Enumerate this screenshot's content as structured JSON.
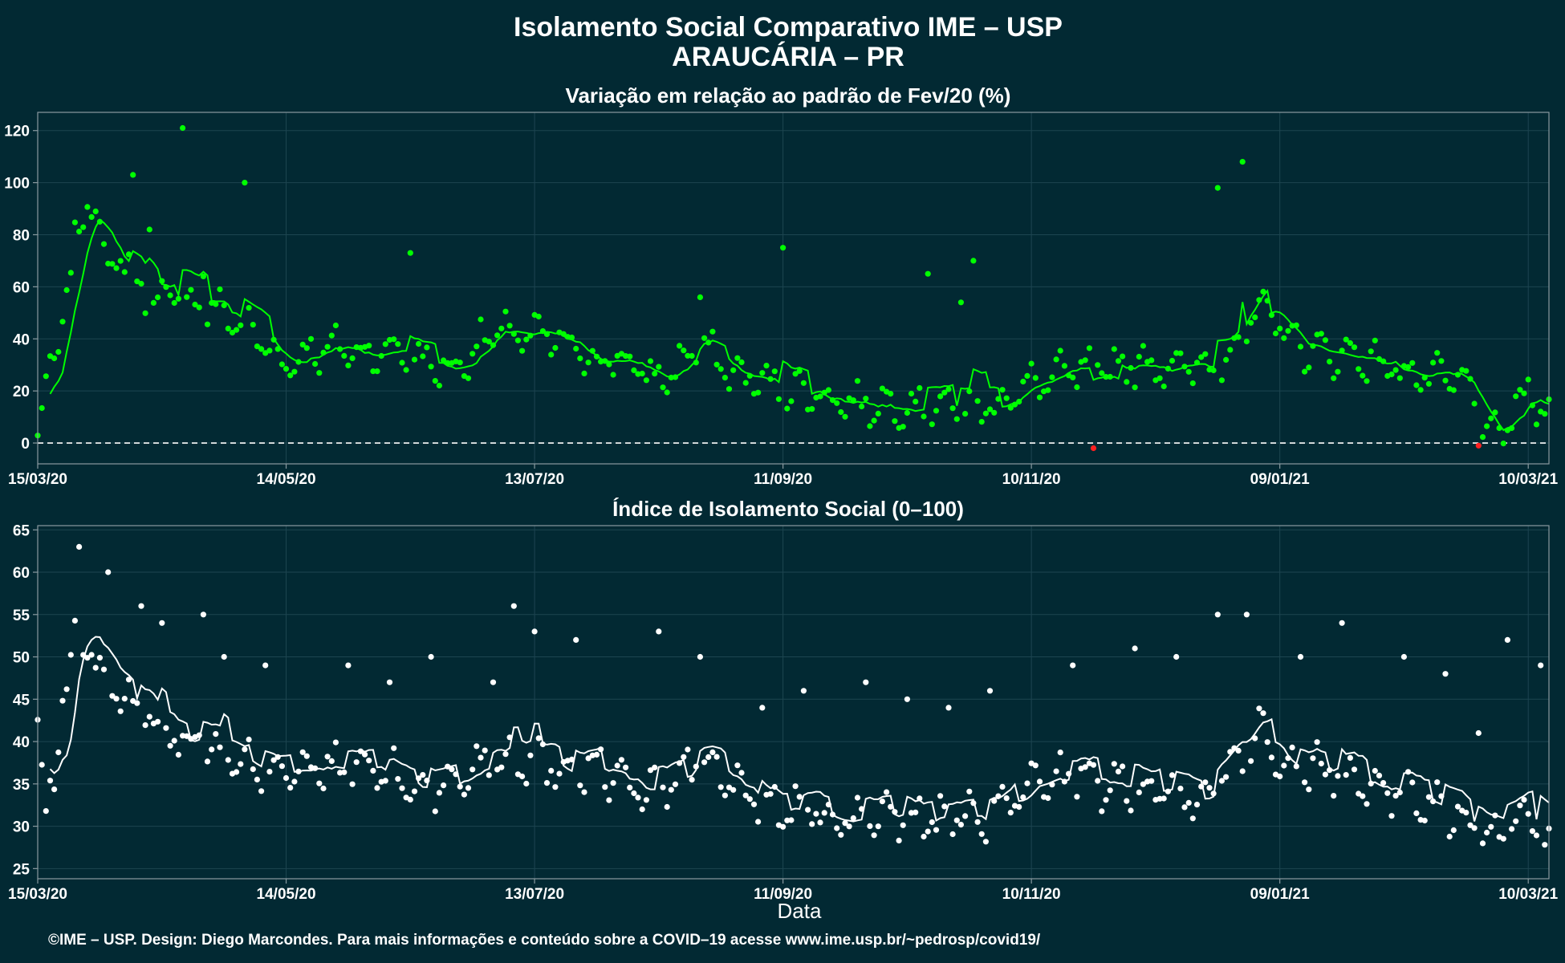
{
  "page": {
    "title_line1": "Isolamento Social Comparativo IME – USP",
    "title_line2": "ARAUCÁRIA – PR",
    "caption": "©IME – USP. Design: Diego Marcondes. Para mais informações e conteúdo sobre a COVID–19 acesse www.ime.usp.br/~pedrosp/covid19/",
    "background_color": "#022933",
    "panel_border_color": "#8a9aa0",
    "grid_color": "#1d4550"
  },
  "chart_data": [
    {
      "type": "scatter",
      "title": "Variação em relação ao padrão de Fev/20 (%)",
      "xlabel": "",
      "ylabel": "",
      "x_start_date": "15/03/20",
      "x_end_date": "15/03/21",
      "ylim": [
        -8,
        127
      ],
      "yticks": [
        0,
        20,
        40,
        60,
        80,
        100,
        120
      ],
      "xtick_labels": [
        "15/03/20",
        "14/05/20",
        "13/07/20",
        "11/09/20",
        "10/11/20",
        "09/01/21",
        "10/03/21"
      ],
      "xtick_days": [
        0,
        60,
        120,
        180,
        240,
        300,
        360
      ],
      "reference_line": {
        "y": 0,
        "style": "dashed",
        "color": "#ffffff"
      },
      "point_color": "#00ff00",
      "negative_point_color": "#ff2020",
      "line_color": "#00ff00",
      "grid": true,
      "series": [
        {
          "kind": "points",
          "keyframes": [
            [
              0,
              2
            ],
            [
              2,
              20
            ],
            [
              5,
              40
            ],
            [
              7,
              55
            ],
            [
              9,
              75
            ],
            [
              11,
              88
            ],
            [
              13,
              95
            ],
            [
              15,
              85
            ],
            [
              17,
              65
            ],
            [
              20,
              72
            ],
            [
              25,
              60
            ],
            [
              30,
              55
            ],
            [
              35,
              57
            ],
            [
              40,
              52
            ],
            [
              45,
              50
            ],
            [
              50,
              45
            ],
            [
              55,
              38
            ],
            [
              60,
              30
            ],
            [
              65,
              35
            ],
            [
              70,
              36
            ],
            [
              75,
              36
            ],
            [
              80,
              34
            ],
            [
              85,
              36
            ],
            [
              90,
              35
            ],
            [
              95,
              30
            ],
            [
              100,
              28
            ],
            [
              105,
              35
            ],
            [
              110,
              42
            ],
            [
              115,
              42
            ],
            [
              120,
              41
            ],
            [
              125,
              40
            ],
            [
              130,
              35
            ],
            [
              135,
              32
            ],
            [
              140,
              33
            ],
            [
              145,
              28
            ],
            [
              150,
              24
            ],
            [
              155,
              30
            ],
            [
              160,
              38
            ],
            [
              165,
              30
            ],
            [
              170,
              25
            ],
            [
              175,
              24
            ],
            [
              180,
              20
            ],
            [
              185,
              20
            ],
            [
              190,
              18
            ],
            [
              195,
              16
            ],
            [
              200,
              15
            ],
            [
              205,
              15
            ],
            [
              210,
              15
            ],
            [
              215,
              14
            ],
            [
              220,
              14
            ],
            [
              225,
              13
            ],
            [
              230,
              15
            ],
            [
              235,
              18
            ],
            [
              240,
              22
            ],
            [
              245,
              25
            ],
            [
              250,
              27
            ],
            [
              255,
              28
            ],
            [
              260,
              30
            ],
            [
              265,
              30
            ],
            [
              270,
              30
            ],
            [
              275,
              30
            ],
            [
              280,
              28
            ],
            [
              285,
              30
            ],
            [
              290,
              40
            ],
            [
              295,
              50
            ],
            [
              300,
              46
            ],
            [
              303,
              40
            ],
            [
              308,
              35
            ],
            [
              315,
              34
            ],
            [
              320,
              33
            ],
            [
              325,
              30
            ],
            [
              330,
              28
            ],
            [
              335,
              25
            ],
            [
              340,
              25
            ],
            [
              345,
              22
            ],
            [
              348,
              15
            ],
            [
              350,
              2
            ],
            [
              353,
              2
            ],
            [
              356,
              12
            ],
            [
              360,
              18
            ],
            [
              363,
              14
            ],
            [
              366,
              18
            ]
          ],
          "outliers": [
            [
              23,
              103
            ],
            [
              27,
              82
            ],
            [
              35,
              121
            ],
            [
              40,
              64
            ],
            [
              50,
              100
            ],
            [
              90,
              73
            ],
            [
              160,
              56
            ],
            [
              215,
              65
            ],
            [
              223,
              54
            ],
            [
              226,
              70
            ],
            [
              285,
              98
            ],
            [
              291,
              108
            ],
            [
              180,
              75
            ],
            [
              255,
              -2
            ],
            [
              348,
              -1
            ]
          ],
          "negative_days": [
            255,
            348
          ]
        },
        {
          "kind": "line",
          "name": ""
        }
      ]
    },
    {
      "type": "scatter",
      "title": "Índice de Isolamento Social (0–100)",
      "xlabel": "Data",
      "ylabel": "",
      "x_start_date": "15/03/20",
      "x_end_date": "15/03/21",
      "ylim": [
        23.8,
        65.5
      ],
      "yticks": [
        25,
        30,
        35,
        40,
        45,
        50,
        55,
        60,
        65
      ],
      "xtick_labels": [
        "15/03/20",
        "14/05/20",
        "13/07/20",
        "11/09/20",
        "10/11/20",
        "09/01/21",
        "10/03/21"
      ],
      "xtick_days": [
        0,
        60,
        120,
        180,
        240,
        300,
        360
      ],
      "point_color": "#ffffff",
      "line_color": "#ffffff",
      "grid": true,
      "series": [
        {
          "kind": "points",
          "keyframes": [
            [
              0,
              42
            ],
            [
              2,
              30
            ],
            [
              4,
              36
            ],
            [
              6,
              45
            ],
            [
              8,
              50
            ],
            [
              10,
              52
            ],
            [
              13,
              51
            ],
            [
              16,
              47
            ],
            [
              20,
              45
            ],
            [
              25,
              44
            ],
            [
              30,
              42
            ],
            [
              35,
              40
            ],
            [
              40,
              40
            ],
            [
              45,
              38
            ],
            [
              50,
              37
            ],
            [
              55,
              37
            ],
            [
              60,
              37
            ],
            [
              65,
              36
            ],
            [
              70,
              37
            ],
            [
              75,
              37
            ],
            [
              80,
              37
            ],
            [
              85,
              36
            ],
            [
              90,
              35
            ],
            [
              95,
              34
            ],
            [
              100,
              35
            ],
            [
              105,
              37
            ],
            [
              110,
              38
            ],
            [
              115,
              38
            ],
            [
              120,
              38
            ],
            [
              125,
              37
            ],
            [
              130,
              37
            ],
            [
              135,
              37
            ],
            [
              140,
              36
            ],
            [
              145,
              34
            ],
            [
              150,
              34
            ],
            [
              155,
              36
            ],
            [
              160,
              38
            ],
            [
              165,
              36
            ],
            [
              170,
              34
            ],
            [
              175,
              33
            ],
            [
              180,
              32
            ],
            [
              185,
              32
            ],
            [
              190,
              31
            ],
            [
              195,
              31
            ],
            [
              200,
              31
            ],
            [
              205,
              31
            ],
            [
              210,
              31
            ],
            [
              215,
              31
            ],
            [
              220,
              31
            ],
            [
              225,
              31
            ],
            [
              230,
              31
            ],
            [
              235,
              33
            ],
            [
              240,
              35
            ],
            [
              245,
              36
            ],
            [
              250,
              36
            ],
            [
              255,
              35
            ],
            [
              260,
              35
            ],
            [
              265,
              35
            ],
            [
              270,
              35
            ],
            [
              275,
              34
            ],
            [
              280,
              34
            ],
            [
              285,
              35
            ],
            [
              290,
              38
            ],
            [
              295,
              42
            ],
            [
              300,
              38
            ],
            [
              305,
              37
            ],
            [
              310,
              37
            ],
            [
              315,
              36
            ],
            [
              320,
              35
            ],
            [
              325,
              35
            ],
            [
              330,
              34
            ],
            [
              335,
              33
            ],
            [
              340,
              32
            ],
            [
              345,
              31
            ],
            [
              350,
              28
            ],
            [
              355,
              30
            ],
            [
              360,
              30
            ],
            [
              365,
              28
            ],
            [
              367,
              30
            ]
          ],
          "outliers": [
            [
              10,
              63
            ],
            [
              17,
              60
            ],
            [
              25,
              56
            ],
            [
              30,
              54
            ],
            [
              40,
              55
            ],
            [
              45,
              50
            ],
            [
              55,
              49
            ],
            [
              75,
              49
            ],
            [
              85,
              47
            ],
            [
              95,
              50
            ],
            [
              110,
              47
            ],
            [
              115,
              56
            ],
            [
              120,
              53
            ],
            [
              130,
              52
            ],
            [
              150,
              53
            ],
            [
              160,
              50
            ],
            [
              175,
              44
            ],
            [
              185,
              46
            ],
            [
              200,
              47
            ],
            [
              210,
              45
            ],
            [
              220,
              44
            ],
            [
              230,
              46
            ],
            [
              250,
              49
            ],
            [
              265,
              51
            ],
            [
              275,
              50
            ],
            [
              285,
              55
            ],
            [
              292,
              55
            ],
            [
              305,
              50
            ],
            [
              315,
              54
            ],
            [
              330,
              50
            ],
            [
              340,
              48
            ],
            [
              348,
              41
            ],
            [
              355,
              52
            ],
            [
              363,
              49
            ]
          ]
        },
        {
          "kind": "line",
          "name": ""
        }
      ]
    }
  ]
}
